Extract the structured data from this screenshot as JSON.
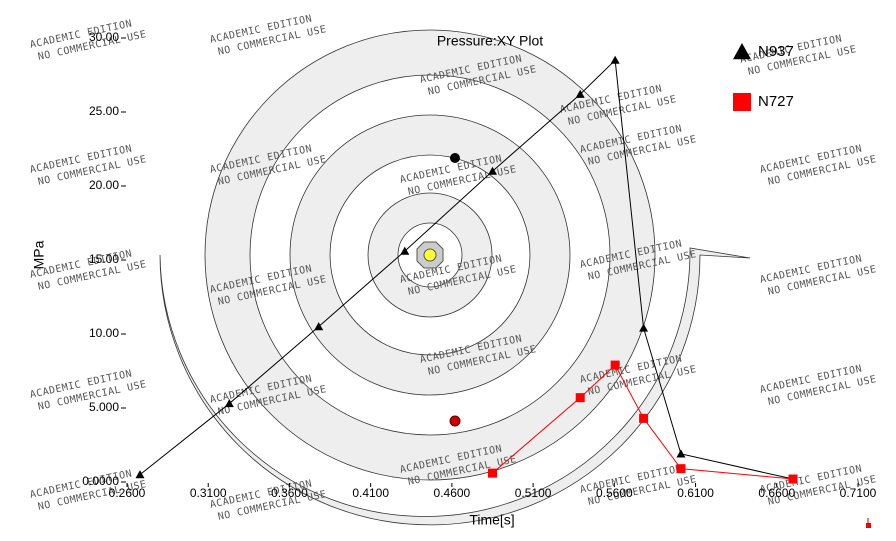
{
  "chart_data": {
    "type": "line",
    "title": "Pressure:XY Plot",
    "x_label": "Time[s]",
    "y_label": "MPa",
    "watermark": [
      "ACADEMIC EDITION",
      "NO COMMERCIAL USE"
    ],
    "xlim": [
      0.26,
      0.71
    ],
    "xticks": [
      {
        "value": 0.26,
        "label": "0.2600"
      },
      {
        "value": 0.31,
        "label": "0.3100"
      },
      {
        "value": 0.36,
        "label": "0.3600"
      },
      {
        "value": 0.41,
        "label": "0.4100"
      },
      {
        "value": 0.46,
        "label": "0.4600"
      },
      {
        "value": 0.51,
        "label": "0.5100"
      },
      {
        "value": 0.56,
        "label": "0.5600"
      },
      {
        "value": 0.61,
        "label": "0.6100"
      },
      {
        "value": 0.66,
        "label": "0.6600"
      },
      {
        "value": 0.71,
        "label": "0.7100"
      }
    ],
    "ylim": [
      0,
      30
    ],
    "yticks": [
      {
        "value": 0,
        "label": "0.0000"
      },
      {
        "value": 5,
        "label": "5.000"
      },
      {
        "value": 10,
        "label": "10.00"
      },
      {
        "value": 15,
        "label": "15.00"
      },
      {
        "value": 20,
        "label": "20.00"
      },
      {
        "value": 25,
        "label": "25.00"
      },
      {
        "value": 30,
        "label": "30.00"
      }
    ],
    "grid": false,
    "legend": "top-right",
    "series": [
      {
        "name": "N937",
        "color": "#000000",
        "marker": "triangle",
        "x": [
          0.268,
          0.323,
          0.378,
          0.431,
          0.485,
          0.539,
          0.5605,
          0.578,
          0.601,
          0.67
        ],
        "values": [
          0.5,
          5.3,
          10.5,
          15.6,
          21.0,
          26.2,
          28.5,
          10.4,
          1.9,
          0.2
        ]
      },
      {
        "name": "N727",
        "color": "#ff0000",
        "marker": "square",
        "x": [
          0.485,
          0.539,
          0.5605,
          0.578,
          0.601,
          0.67
        ],
        "values": [
          0.6,
          5.7,
          7.9,
          4.3,
          0.9,
          0.2
        ]
      }
    ]
  }
}
